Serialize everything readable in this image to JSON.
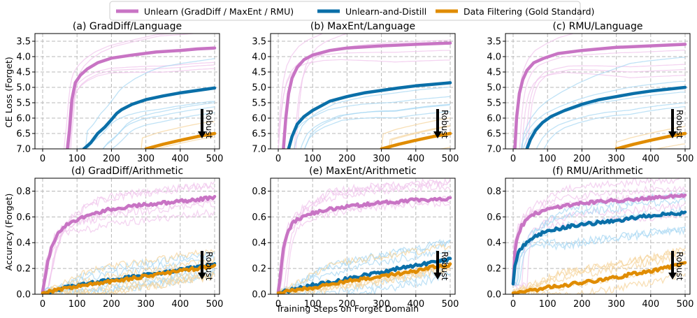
{
  "legend": {
    "unlearn": "Unlearn (GradDiff / MaxEnt / RMU)",
    "distill": "Unlearn-and-Distill",
    "filter": "Data Filtering (Gold Standard)"
  },
  "colors": {
    "unlearn": "#c874c4",
    "distill": "#0a6fa8",
    "filter": "#e08c00",
    "unlearn_light": "#f0c6ec",
    "distill_light": "#a9d8f3",
    "filter_light": "#f6d49c"
  },
  "axes": {
    "xlabel": "Training Steps on Forget Domain",
    "ylabel_top": "CE Loss (Forget)",
    "ylabel_bottom": "Accuracy (Forget)",
    "robust_label": "Robust"
  },
  "chart_data": [
    {
      "type": "line",
      "title": "(a) GradDiff/Language",
      "ylabel": "CE Loss (Forget)",
      "xlabel": "Training Steps on Forget Domain",
      "xlim": [
        0,
        500
      ],
      "ylim": [
        7.0,
        3.25
      ],
      "y_inverted": true,
      "xticks": [
        0,
        100,
        200,
        300,
        400,
        500
      ],
      "yticks": [
        3.5,
        4.0,
        4.5,
        5.0,
        5.5,
        6.0,
        6.5,
        7.0
      ],
      "series": [
        {
          "name": "Unlearn (GradDiff / MaxEnt / RMU)",
          "x": [
            72,
            78,
            85,
            95,
            110,
            130,
            160,
            200,
            260,
            330,
            400,
            450,
            500
          ],
          "values": [
            7.0,
            6.4,
            5.4,
            4.85,
            4.6,
            4.4,
            4.2,
            4.05,
            3.95,
            3.85,
            3.8,
            3.75,
            3.72
          ]
        },
        {
          "name": "Unlearn-and-Distill",
          "x": [
            120,
            140,
            160,
            180,
            200,
            215,
            230,
            260,
            300,
            350,
            400,
            450,
            500
          ],
          "values": [
            7.0,
            6.8,
            6.5,
            6.3,
            6.05,
            5.85,
            5.72,
            5.55,
            5.4,
            5.28,
            5.18,
            5.1,
            5.02
          ]
        },
        {
          "name": "Data Filtering (Gold Standard)",
          "x": [
            300,
            350,
            400,
            450,
            500
          ],
          "values": [
            7.0,
            6.85,
            6.72,
            6.6,
            6.5
          ]
        }
      ]
    },
    {
      "type": "line",
      "title": "(b) MaxEnt/Language",
      "ylabel": "",
      "xlabel": "",
      "xlim": [
        0,
        500
      ],
      "ylim": [
        7.0,
        3.25
      ],
      "y_inverted": true,
      "xticks": [
        0,
        100,
        200,
        300,
        400,
        500
      ],
      "yticks": [
        3.5,
        4.0,
        4.5,
        5.0,
        5.5,
        6.0,
        6.5,
        7.0
      ],
      "series": [
        {
          "name": "Unlearn (GradDiff / MaxEnt / RMU)",
          "x": [
            15,
            22,
            30,
            40,
            55,
            75,
            100,
            150,
            200,
            300,
            400,
            500
          ],
          "values": [
            7.0,
            6.0,
            5.2,
            4.7,
            4.35,
            4.1,
            3.95,
            3.8,
            3.72,
            3.65,
            3.6,
            3.56
          ]
        },
        {
          "name": "Unlearn-and-Distill",
          "x": [
            30,
            40,
            55,
            75,
            100,
            150,
            200,
            250,
            300,
            350,
            400,
            450,
            500
          ],
          "values": [
            7.0,
            6.6,
            6.2,
            5.95,
            5.75,
            5.45,
            5.3,
            5.18,
            5.1,
            5.02,
            4.95,
            4.9,
            4.85
          ]
        },
        {
          "name": "Data Filtering (Gold Standard)",
          "x": [
            300,
            350,
            400,
            450,
            500
          ],
          "values": [
            7.0,
            6.85,
            6.72,
            6.6,
            6.5
          ]
        }
      ]
    },
    {
      "type": "line",
      "title": "(c) RMU/Language",
      "ylabel": "",
      "xlabel": "",
      "xlim": [
        0,
        500
      ],
      "ylim": [
        7.0,
        3.25
      ],
      "y_inverted": true,
      "xticks": [
        0,
        100,
        200,
        300,
        400,
        500
      ],
      "yticks": [
        3.5,
        4.0,
        4.5,
        5.0,
        5.5,
        6.0,
        6.5,
        7.0
      ],
      "series": [
        {
          "name": "Unlearn (GradDiff / MaxEnt / RMU)",
          "x": [
            5,
            10,
            18,
            28,
            40,
            60,
            90,
            130,
            200,
            300,
            400,
            500
          ],
          "values": [
            7.0,
            6.0,
            5.2,
            4.75,
            4.45,
            4.2,
            4.05,
            3.9,
            3.8,
            3.7,
            3.65,
            3.6
          ]
        },
        {
          "name": "Unlearn-and-Distill",
          "x": [
            40,
            50,
            65,
            85,
            110,
            150,
            200,
            250,
            300,
            350,
            400,
            450,
            500
          ],
          "values": [
            7.0,
            6.7,
            6.4,
            6.15,
            5.95,
            5.75,
            5.55,
            5.4,
            5.3,
            5.2,
            5.12,
            5.06,
            5.0
          ]
        },
        {
          "name": "Data Filtering (Gold Standard)",
          "x": [
            300,
            350,
            400,
            450,
            500
          ],
          "values": [
            7.0,
            6.85,
            6.72,
            6.6,
            6.5
          ]
        }
      ]
    },
    {
      "type": "line",
      "title": "(d) GradDiff/Arithmetic",
      "ylabel": "Accuracy (Forget)",
      "xlabel": "Training Steps on Forget Domain",
      "xlim": [
        0,
        500
      ],
      "ylim": [
        0.0,
        0.9
      ],
      "y_inverted": false,
      "xticks": [
        0,
        100,
        200,
        300,
        400,
        500
      ],
      "yticks": [
        0.0,
        0.2,
        0.4,
        0.6,
        0.8
      ],
      "series": [
        {
          "name": "Unlearn (GradDiff / MaxEnt / RMU)",
          "x": [
            0,
            5,
            15,
            25,
            40,
            60,
            90,
            130,
            180,
            250,
            320,
            400,
            460,
            500
          ],
          "values": [
            0.02,
            0.1,
            0.25,
            0.35,
            0.45,
            0.52,
            0.57,
            0.61,
            0.65,
            0.68,
            0.7,
            0.72,
            0.74,
            0.75
          ]
        },
        {
          "name": "Unlearn-and-Distill",
          "x": [
            0,
            50,
            100,
            150,
            200,
            250,
            300,
            350,
            400,
            450,
            500
          ],
          "values": [
            0.01,
            0.04,
            0.07,
            0.09,
            0.11,
            0.13,
            0.15,
            0.17,
            0.19,
            0.21,
            0.23
          ]
        },
        {
          "name": "Data Filtering (Gold Standard)",
          "x": [
            0,
            50,
            100,
            150,
            200,
            250,
            300,
            350,
            400,
            450,
            500
          ],
          "values": [
            0.01,
            0.04,
            0.06,
            0.08,
            0.1,
            0.12,
            0.14,
            0.16,
            0.18,
            0.2,
            0.22
          ]
        }
      ]
    },
    {
      "type": "line",
      "title": "(e) MaxEnt/Arithmetic",
      "ylabel": "",
      "xlabel": "",
      "xlim": [
        0,
        500
      ],
      "ylim": [
        0.0,
        0.9
      ],
      "y_inverted": false,
      "xticks": [
        0,
        100,
        200,
        300,
        400,
        500
      ],
      "yticks": [
        0.0,
        0.2,
        0.4,
        0.6,
        0.8
      ],
      "series": [
        {
          "name": "Unlearn (GradDiff / MaxEnt / RMU)",
          "x": [
            0,
            5,
            12,
            20,
            30,
            45,
            70,
            100,
            150,
            200,
            300,
            400,
            500
          ],
          "values": [
            0.02,
            0.12,
            0.3,
            0.42,
            0.5,
            0.56,
            0.6,
            0.63,
            0.66,
            0.68,
            0.71,
            0.73,
            0.74
          ]
        },
        {
          "name": "Unlearn-and-Distill",
          "x": [
            0,
            50,
            100,
            150,
            200,
            250,
            300,
            350,
            400,
            450,
            500
          ],
          "values": [
            0.01,
            0.04,
            0.07,
            0.09,
            0.12,
            0.15,
            0.17,
            0.2,
            0.22,
            0.25,
            0.27
          ]
        },
        {
          "name": "Data Filtering (Gold Standard)",
          "x": [
            0,
            50,
            100,
            150,
            200,
            250,
            300,
            350,
            400,
            450,
            500
          ],
          "values": [
            0.01,
            0.03,
            0.05,
            0.08,
            0.1,
            0.12,
            0.14,
            0.16,
            0.18,
            0.21,
            0.23
          ]
        }
      ]
    },
    {
      "type": "line",
      "title": "(f) RMU/Arithmetic",
      "ylabel": "",
      "xlabel": "",
      "xlim": [
        0,
        500
      ],
      "ylim": [
        0.0,
        0.9
      ],
      "y_inverted": false,
      "xticks": [
        0,
        100,
        200,
        300,
        400,
        500
      ],
      "yticks": [
        0.0,
        0.2,
        0.4,
        0.6,
        0.8
      ],
      "series": [
        {
          "name": "Unlearn (GradDiff / MaxEnt / RMU)",
          "x": [
            0,
            3,
            8,
            15,
            25,
            40,
            60,
            90,
            130,
            180,
            250,
            320,
            400,
            460,
            500
          ],
          "values": [
            0.08,
            0.28,
            0.4,
            0.47,
            0.53,
            0.58,
            0.62,
            0.65,
            0.68,
            0.7,
            0.72,
            0.73,
            0.75,
            0.76,
            0.76
          ]
        },
        {
          "name": "Unlearn-and-Distill",
          "x": [
            0,
            5,
            15,
            30,
            50,
            80,
            120,
            170,
            230,
            300,
            370,
            430,
            500
          ],
          "values": [
            0.08,
            0.22,
            0.32,
            0.38,
            0.43,
            0.47,
            0.5,
            0.53,
            0.55,
            0.57,
            0.6,
            0.62,
            0.63
          ]
        },
        {
          "name": "Data Filtering (Gold Standard)",
          "x": [
            0,
            50,
            100,
            150,
            200,
            250,
            300,
            350,
            400,
            450,
            500
          ],
          "values": [
            0.01,
            0.03,
            0.05,
            0.07,
            0.09,
            0.11,
            0.13,
            0.16,
            0.18,
            0.21,
            0.24
          ]
        }
      ]
    }
  ]
}
